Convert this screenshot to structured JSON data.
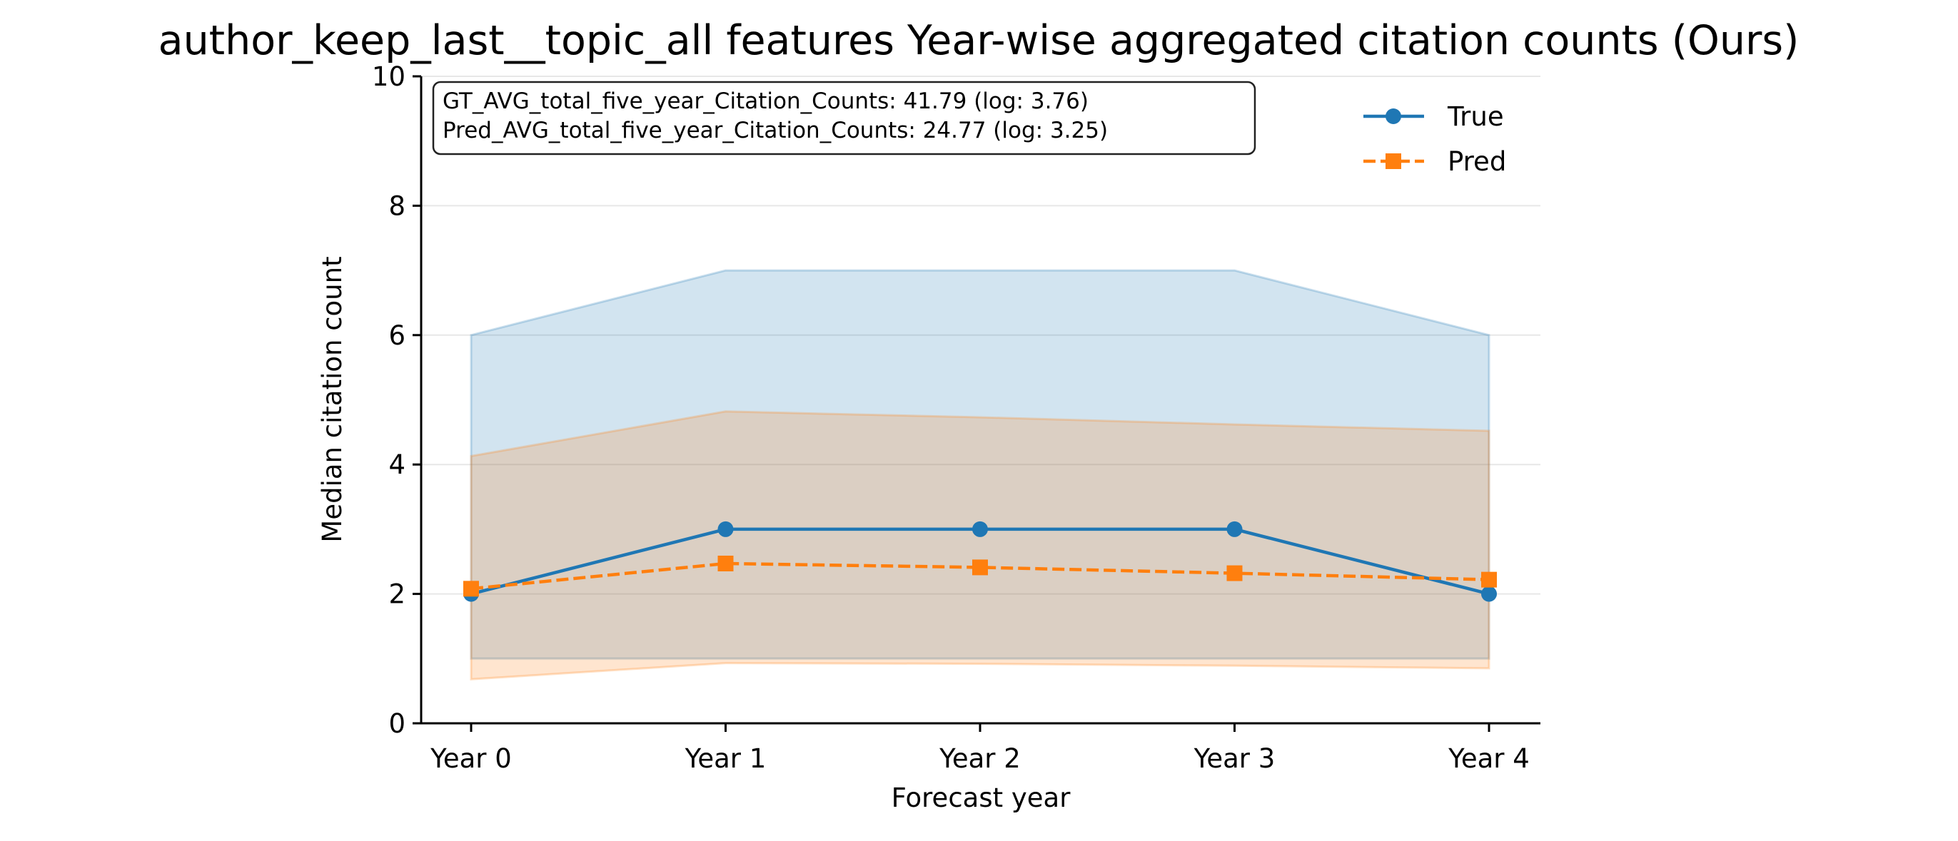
{
  "chart_data": {
    "type": "line",
    "title": "author_keep_last__topic_all features Year-wise aggregated citation counts (Ours)",
    "xlabel": "Forecast year",
    "ylabel": "Median citation count",
    "categories": [
      "Year 0",
      "Year 1",
      "Year 2",
      "Year 3",
      "Year 4"
    ],
    "ylim": [
      0,
      10
    ],
    "yticks": [
      0,
      2,
      4,
      6,
      8,
      10
    ],
    "grid": "horizontal",
    "legend_position": "top-right",
    "annotation": {
      "line1": "GT_AVG_total_five_year_Citation_Counts: 41.79 (log: 3.76)",
      "line2": "Pred_AVG_total_five_year_Citation_Counts: 24.77 (log: 3.25)"
    },
    "series": [
      {
        "name": "True",
        "color": "#1f77b4",
        "marker": "circle",
        "linestyle": "solid",
        "values": [
          2,
          3,
          3,
          3,
          2
        ],
        "band_lower": [
          1,
          1,
          1,
          1,
          1
        ],
        "band_upper": [
          6,
          7,
          7,
          7,
          6
        ]
      },
      {
        "name": "Pred",
        "color": "#ff7f0e",
        "marker": "square",
        "linestyle": "dashed",
        "values": [
          2.08,
          2.47,
          2.41,
          2.32,
          2.22
        ],
        "band_lower": [
          0.68,
          0.93,
          0.92,
          0.89,
          0.85
        ],
        "band_upper": [
          4.13,
          4.82,
          4.73,
          4.62,
          4.52
        ]
      }
    ]
  }
}
